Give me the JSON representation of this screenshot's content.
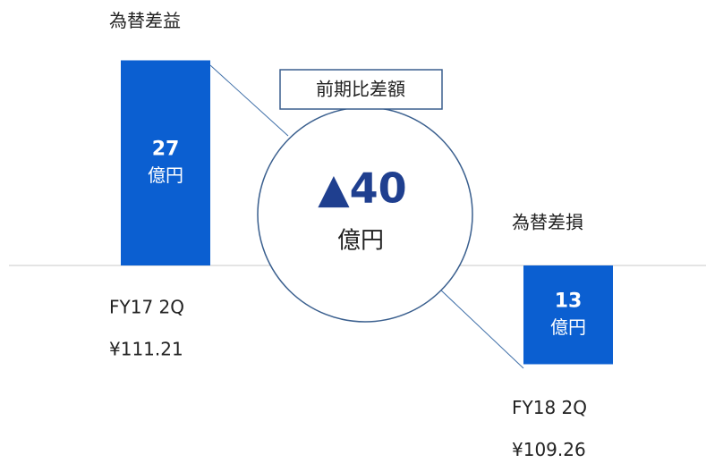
{
  "chart_data": {
    "type": "bar",
    "categories": [
      "FY17 2Q",
      "FY18 2Q"
    ],
    "bar_titles": [
      "為替差益",
      "為替差損"
    ],
    "rates": [
      "¥111.21",
      "¥109.26"
    ],
    "values": [
      27,
      -13
    ],
    "value_labels": [
      "27",
      "13"
    ],
    "unit": "億円",
    "color": "#0b5fd1",
    "difference": {
      "title": "前期比差額",
      "value": -40,
      "label": "▲40"
    }
  }
}
